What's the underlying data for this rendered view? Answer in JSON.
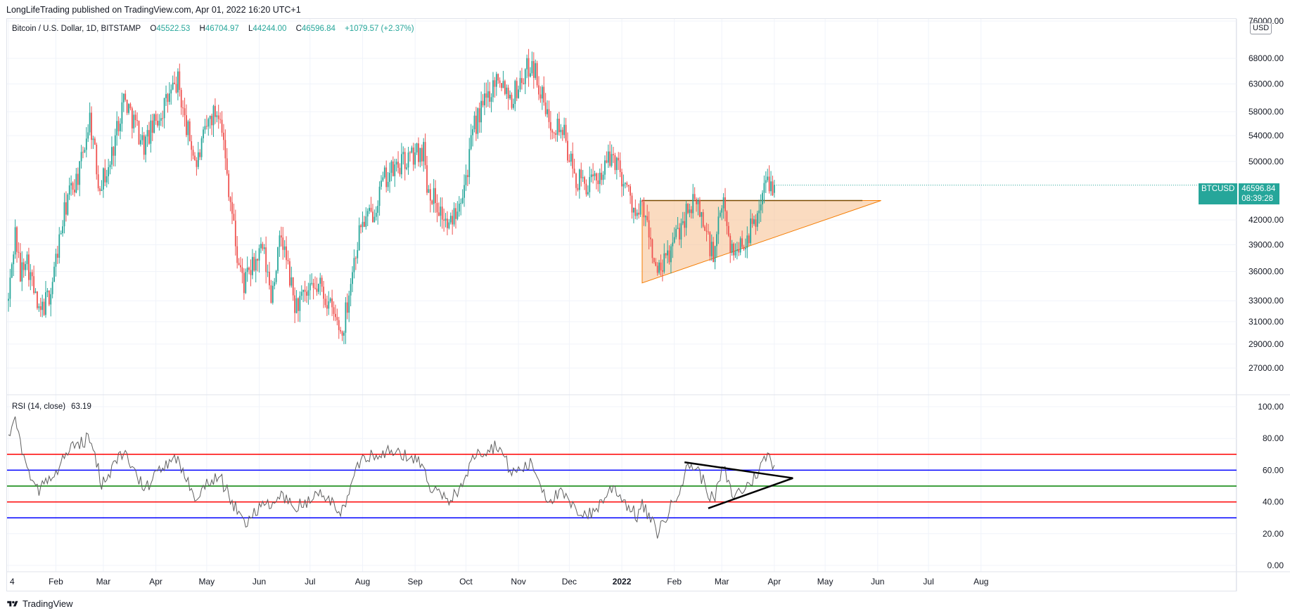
{
  "header": {
    "publish_line": "LongLifeTrading published on TradingView.com, Apr 01, 2022 16:20 UTC+1"
  },
  "legend": {
    "symbol": "Bitcoin / U.S. Dollar, 1D, BITSTAMP",
    "o_key": "O",
    "o_val": "45522.53",
    "h_key": "H",
    "h_val": "46704.97",
    "l_key": "L",
    "l_val": "44244.00",
    "c_key": "C",
    "c_val": "46596.84",
    "change": "+1079.57 (+2.37%)"
  },
  "currency_badge": "USD",
  "last_price_tag": {
    "symbol": "BTCUSD",
    "price": "46596.84",
    "countdown": "08:39:28"
  },
  "rsi_legend": {
    "label": "RSI (14, close)",
    "value": "63.19"
  },
  "footer": {
    "brand": "TradingView"
  },
  "colors": {
    "up": "#26a69a",
    "down": "#ef5350",
    "triangle_fill": "#f7c396",
    "triangle_stroke": "#f57c00",
    "rsi_line": "#606060",
    "red_level": "#ff0000",
    "blue_level": "#0000ff",
    "green_level": "#008000"
  },
  "chart_data": [
    {
      "type": "candlestick",
      "title": "Bitcoin / U.S. Dollar, 1D, BITSTAMP",
      "scale": "log",
      "y_tick_labels": [
        "76000.00",
        "68000.00",
        "63000.00",
        "58000.00",
        "54000.00",
        "50000.00",
        "46596.84",
        "42000.00",
        "39000.00",
        "36000.00",
        "33000.00",
        "31000.00",
        "29000.00",
        "27000.00"
      ],
      "x_tick_labels": [
        "4",
        "Feb",
        "Mar",
        "Apr",
        "May",
        "Jun",
        "Jul",
        "Aug",
        "Sep",
        "Oct",
        "Nov",
        "Dec",
        "2022",
        "Feb",
        "Mar",
        "Apr",
        "May",
        "Jun",
        "Jul",
        "Aug"
      ],
      "x_range": [
        "2021-01-04",
        "2022-08-31"
      ],
      "ylim": [
        26000,
        76000
      ],
      "anchors": [
        [
          "2021-01-04",
          33000
        ],
        [
          "2021-01-08",
          40500
        ],
        [
          "2021-01-11",
          35500
        ],
        [
          "2021-01-14",
          38000
        ],
        [
          "2021-01-22",
          31500
        ],
        [
          "2021-01-29",
          34000
        ],
        [
          "2021-02-08",
          45000
        ],
        [
          "2021-02-15",
          48500
        ],
        [
          "2021-02-21",
          57000
        ],
        [
          "2021-02-26",
          47000
        ],
        [
          "2021-03-04",
          48500
        ],
        [
          "2021-03-13",
          60500
        ],
        [
          "2021-03-25",
          52500
        ],
        [
          "2021-04-05",
          58500
        ],
        [
          "2021-04-14",
          63500
        ],
        [
          "2021-04-18",
          56500
        ],
        [
          "2021-04-25",
          49500
        ],
        [
          "2021-05-03",
          57000
        ],
        [
          "2021-05-09",
          58500
        ],
        [
          "2021-05-12",
          50000
        ],
        [
          "2021-05-19",
          37500
        ],
        [
          "2021-05-23",
          34700
        ],
        [
          "2021-06-03",
          38500
        ],
        [
          "2021-06-08",
          33500
        ],
        [
          "2021-06-14",
          40000
        ],
        [
          "2021-06-22",
          32500
        ],
        [
          "2021-07-07",
          34500
        ],
        [
          "2021-07-20",
          29800
        ],
        [
          "2021-07-31",
          41500
        ],
        [
          "2021-08-06",
          42500
        ],
        [
          "2021-08-14",
          47500
        ],
        [
          "2021-08-23",
          49500
        ],
        [
          "2021-09-06",
          52000
        ],
        [
          "2021-09-08",
          46800
        ],
        [
          "2021-09-21",
          40800
        ],
        [
          "2021-10-01",
          47800
        ],
        [
          "2021-10-06",
          55500
        ],
        [
          "2021-10-20",
          65000
        ],
        [
          "2021-10-28",
          60500
        ],
        [
          "2021-11-09",
          67500
        ],
        [
          "2021-11-18",
          57000
        ],
        [
          "2021-11-27",
          55000
        ],
        [
          "2021-12-04",
          47500
        ],
        [
          "2021-12-14",
          46500
        ],
        [
          "2021-12-27",
          51000
        ],
        [
          "2022-01-05",
          45500
        ],
        [
          "2022-01-10",
          42000
        ],
        [
          "2022-01-13",
          43800
        ],
        [
          "2022-01-22",
          35500
        ],
        [
          "2022-01-28",
          37500
        ],
        [
          "2022-02-10",
          44000
        ],
        [
          "2022-02-15",
          43800
        ],
        [
          "2022-02-24",
          37500
        ],
        [
          "2022-03-02",
          44500
        ],
        [
          "2022-03-07",
          38000
        ],
        [
          "2022-03-14",
          39500
        ],
        [
          "2022-03-20",
          41500
        ],
        [
          "2022-03-28",
          47500
        ],
        [
          "2022-04-01",
          46596.84
        ]
      ],
      "annotations": {
        "ascending_triangle": {
          "start": "2022-01-13",
          "apex": "2022-06-03",
          "resistance": 44500,
          "support_start": 34800,
          "apex_price": 44500
        },
        "resistance_line": {
          "start": "2022-01-13",
          "end": "2022-05-23",
          "price": 44500
        }
      },
      "last_price": 46596.84
    },
    {
      "type": "line",
      "title": "RSI (14, close)",
      "y_tick_labels": [
        "100.00",
        "80.00",
        "60.00",
        "40.00",
        "20.00",
        "0.00"
      ],
      "ylim": [
        0,
        100
      ],
      "levels": [
        {
          "value": 70,
          "color": "#ff0000"
        },
        {
          "value": 60,
          "color": "#0000ff"
        },
        {
          "value": 50,
          "color": "#008000"
        },
        {
          "value": 40,
          "color": "#ff0000"
        },
        {
          "value": 30,
          "color": "#0000ff"
        }
      ],
      "anchors": [
        [
          "2021-01-04",
          84
        ],
        [
          "2021-01-08",
          90
        ],
        [
          "2021-01-15",
          62
        ],
        [
          "2021-01-22",
          48
        ],
        [
          "2021-02-01",
          58
        ],
        [
          "2021-02-10",
          75
        ],
        [
          "2021-02-21",
          80
        ],
        [
          "2021-02-28",
          52
        ],
        [
          "2021-03-13",
          72
        ],
        [
          "2021-03-25",
          48
        ],
        [
          "2021-04-05",
          62
        ],
        [
          "2021-04-14",
          66
        ],
        [
          "2021-04-25",
          42
        ],
        [
          "2021-05-01",
          52
        ],
        [
          "2021-05-09",
          55
        ],
        [
          "2021-05-19",
          34
        ],
        [
          "2021-05-23",
          26
        ],
        [
          "2021-06-03",
          40
        ],
        [
          "2021-06-08",
          36
        ],
        [
          "2021-06-14",
          45
        ],
        [
          "2021-06-22",
          36
        ],
        [
          "2021-07-07",
          45
        ],
        [
          "2021-07-20",
          34
        ],
        [
          "2021-07-31",
          68
        ],
        [
          "2021-08-14",
          72
        ],
        [
          "2021-08-23",
          70
        ],
        [
          "2021-09-06",
          65
        ],
        [
          "2021-09-08",
          50
        ],
        [
          "2021-09-21",
          40
        ],
        [
          "2021-10-01",
          55
        ],
        [
          "2021-10-06",
          70
        ],
        [
          "2021-10-20",
          76
        ],
        [
          "2021-10-28",
          58
        ],
        [
          "2021-11-09",
          64
        ],
        [
          "2021-11-18",
          42
        ],
        [
          "2021-11-27",
          45
        ],
        [
          "2021-12-04",
          35
        ],
        [
          "2021-12-14",
          32
        ],
        [
          "2021-12-27",
          50
        ],
        [
          "2022-01-05",
          37
        ],
        [
          "2022-01-10",
          31
        ],
        [
          "2022-01-13",
          38
        ],
        [
          "2022-01-22",
          21
        ],
        [
          "2022-01-28",
          32
        ],
        [
          "2022-02-10",
          64
        ],
        [
          "2022-02-15",
          60
        ],
        [
          "2022-02-24",
          40
        ],
        [
          "2022-03-02",
          62
        ],
        [
          "2022-03-07",
          44
        ],
        [
          "2022-03-14",
          48
        ],
        [
          "2022-03-20",
          55
        ],
        [
          "2022-03-28",
          70
        ],
        [
          "2022-04-01",
          63.19
        ]
      ],
      "annotations": {
        "upper_line": {
          "start": [
            "2022-02-07",
            65
          ],
          "end": [
            "2022-04-12",
            55
          ]
        },
        "lower_line": {
          "start": [
            "2022-02-21",
            36
          ],
          "end": [
            "2022-04-12",
            55
          ]
        }
      }
    }
  ]
}
